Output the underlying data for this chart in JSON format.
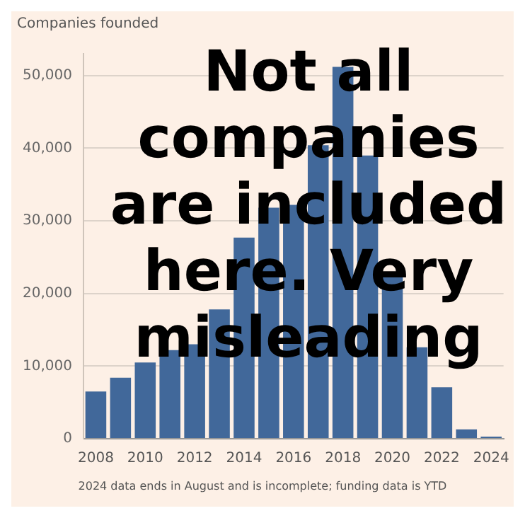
{
  "chart_data": {
    "type": "bar",
    "ylabel": "Companies founded",
    "categories": [
      "2008",
      null,
      "2010",
      null,
      "2012",
      null,
      "2014",
      null,
      "2016",
      null,
      "2018",
      null,
      "2020",
      null,
      "2022",
      null,
      "2024"
    ],
    "values": [
      6500,
      8400,
      10500,
      12200,
      13000,
      17800,
      27700,
      31800,
      32200,
      40400,
      51200,
      39000,
      22400,
      12600,
      7100,
      1300,
      300
    ],
    "color": "#41689a",
    "ylim": [
      0,
      53000
    ],
    "yticks": [
      0,
      {
        "value": 10000,
        "label": "10,000"
      },
      {
        "value": 20000,
        "label": "20,000"
      },
      {
        "value": 30000,
        "label": "30,000"
      },
      {
        "value": 40000,
        "label": "40,000"
      },
      {
        "value": 50000,
        "label": "50,000"
      }
    ],
    "grid": "y",
    "annotations": [
      "Not all companies are included here. Very misleading",
      "2024 data ends in August and is incomplete; funding data is YTD"
    ]
  }
}
